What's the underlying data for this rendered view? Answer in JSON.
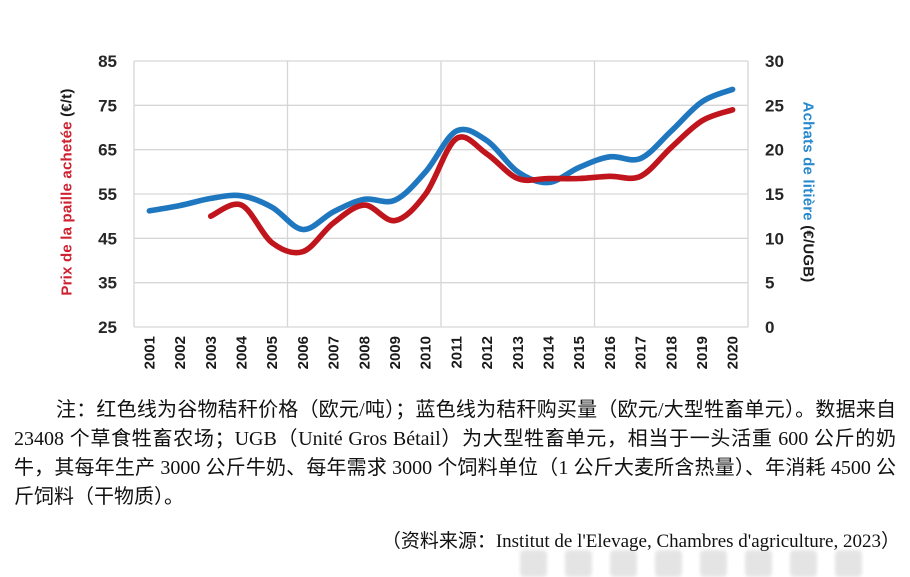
{
  "chart_data": {
    "type": "line",
    "title": "",
    "x": [
      "2001",
      "2002",
      "2003",
      "2004",
      "2005",
      "2006",
      "2007",
      "2008",
      "2009",
      "2010",
      "2011",
      "2012",
      "2013",
      "2014",
      "2015",
      "2016",
      "2017",
      "2018",
      "2019",
      "2020"
    ],
    "series": [
      {
        "name": "Prix de la paille achetée (€/t)",
        "axis": "left",
        "color": "#c0151c",
        "values": [
          null,
          null,
          50,
          52.5,
          44,
          42,
          48.5,
          52.5,
          49,
          55,
          67.5,
          64,
          58.5,
          58.5,
          58.5,
          59,
          59,
          65.5,
          71.5,
          74
        ]
      },
      {
        "name": "Achats de litière (€/UGB)",
        "axis": "right",
        "color": "#1f78bf",
        "values": [
          13.1,
          13.7,
          14.5,
          14.8,
          13.5,
          11,
          13,
          14.4,
          14.3,
          17.5,
          22.1,
          21,
          17.5,
          16.3,
          18,
          19.2,
          19,
          22.1,
          25.4,
          26.8
        ]
      }
    ],
    "left_axis": {
      "label_colored": "Prix de la paille achetée",
      "label_unit": "(€/t)",
      "color": "#cf2030",
      "min": 25,
      "max": 85,
      "ticks": [
        "85",
        "75",
        "65",
        "55",
        "45",
        "35",
        "25"
      ]
    },
    "right_axis": {
      "label_colored": "Achats de litière",
      "label_unit": "(€/UGB)",
      "color": "#2688cd",
      "min": 0,
      "max": 30,
      "ticks": [
        "30",
        "25",
        "20",
        "15",
        "10",
        "5",
        "0"
      ]
    },
    "grid": true,
    "legend_position": "none",
    "grid_color": "#d6d6d6",
    "tick_color": "#262626"
  },
  "note": {
    "text": "注：红色线为谷物秸秆价格（欧元/吨）；蓝色线为秸秆购买量（欧元/大型牲畜单元）。数据来自 23408 个草食牲畜农场；UGB（Unité Gros Bétail）为大型牲畜单元，相当于一头活重 600 公斤的奶牛，其每年生产 3000 公斤牛奶、每年需求 3000 个饲料单位（1 公斤大麦所含热量）、年消耗 4500 公斤饲料（干物质）。",
    "source": "（资料来源：Institut de l'Elevage, Chambres d'agriculture, 2023）"
  }
}
